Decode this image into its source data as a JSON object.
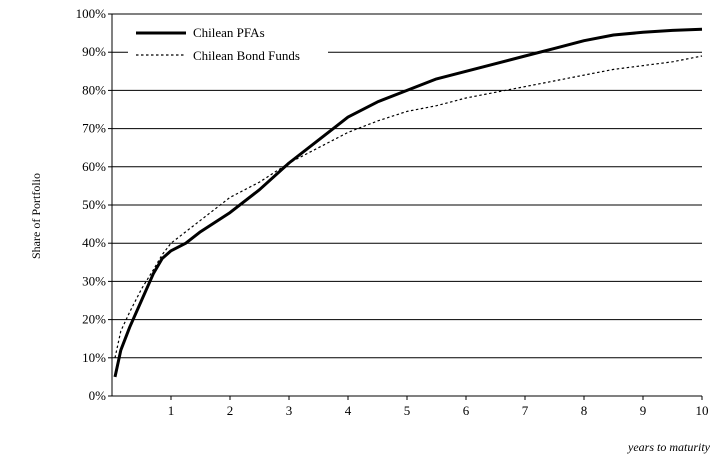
{
  "chart_data": {
    "type": "line",
    "title": "",
    "xlabel": "years to maturity",
    "ylabel": "Share of Portfolio",
    "xlim": [
      0,
      10
    ],
    "ylim": [
      0,
      100
    ],
    "x_ticks": [
      "1",
      "2",
      "3",
      "4",
      "5",
      "6",
      "7",
      "8",
      "9",
      "10"
    ],
    "y_ticks": [
      "0%",
      "10%",
      "20%",
      "30%",
      "40%",
      "50%",
      "60%",
      "70%",
      "80%",
      "90%",
      "100%"
    ],
    "grid": "horizontal",
    "legend_position": "top-left",
    "series": [
      {
        "name": "Chilean PFAs",
        "style": "solid-thick",
        "color": "#000000",
        "points": [
          [
            0.05,
            5
          ],
          [
            0.15,
            12
          ],
          [
            0.3,
            18
          ],
          [
            0.5,
            25
          ],
          [
            0.7,
            32
          ],
          [
            0.85,
            36
          ],
          [
            1,
            38
          ],
          [
            1.25,
            40
          ],
          [
            1.5,
            43
          ],
          [
            2,
            48
          ],
          [
            2.5,
            54
          ],
          [
            3,
            61
          ],
          [
            3.5,
            67
          ],
          [
            4,
            73
          ],
          [
            4.5,
            77
          ],
          [
            5,
            80
          ],
          [
            5.5,
            83
          ],
          [
            6,
            85
          ],
          [
            6.5,
            87
          ],
          [
            7,
            89
          ],
          [
            7.5,
            91
          ],
          [
            8,
            93
          ],
          [
            8.5,
            94.5
          ],
          [
            9,
            95.2
          ],
          [
            9.5,
            95.7
          ],
          [
            10,
            96
          ]
        ]
      },
      {
        "name": "Chilean Bond Funds",
        "style": "dashed",
        "color": "#000000",
        "points": [
          [
            0.05,
            10
          ],
          [
            0.15,
            17
          ],
          [
            0.3,
            22
          ],
          [
            0.5,
            28
          ],
          [
            0.7,
            33
          ],
          [
            0.85,
            37
          ],
          [
            1,
            40
          ],
          [
            1.5,
            46
          ],
          [
            2,
            52
          ],
          [
            2.5,
            56
          ],
          [
            3,
            61
          ],
          [
            3.5,
            65
          ],
          [
            4,
            69
          ],
          [
            4.5,
            72
          ],
          [
            5,
            74.5
          ],
          [
            5.5,
            76
          ],
          [
            6,
            78
          ],
          [
            6.5,
            79.5
          ],
          [
            7,
            81
          ],
          [
            7.5,
            82.5
          ],
          [
            8,
            84
          ],
          [
            8.5,
            85.5
          ],
          [
            9,
            86.5
          ],
          [
            9.5,
            87.5
          ],
          [
            10,
            89
          ]
        ]
      }
    ]
  }
}
